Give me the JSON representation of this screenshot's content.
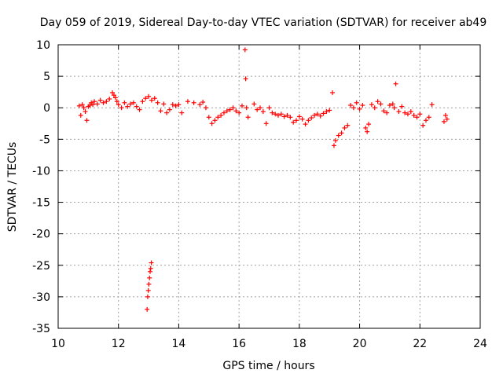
{
  "chart_data": {
    "type": "scatter",
    "title": "Day 059 of 2019, Sidereal Day-to-day VTEC variation (SDTVAR) for receiver ab49",
    "xlabel": "GPS time / hours",
    "ylabel": "SDTVAR / TECUs",
    "xlim": [
      10,
      24
    ],
    "ylim": [
      -35,
      10
    ],
    "xticks": [
      "10",
      "12",
      "14",
      "16",
      "18",
      "20",
      "22",
      "24"
    ],
    "yticks": [
      "10",
      "5",
      "0",
      "-5",
      "-10",
      "-15",
      "-20",
      "-25",
      "-30",
      "-35"
    ],
    "grid": true,
    "marker": "plus",
    "color": "#ff0000",
    "series": [
      {
        "name": "SDTVAR",
        "x": [
          10.7,
          10.75,
          10.8,
          10.85,
          10.9,
          10.95,
          11.0,
          11.05,
          11.1,
          11.15,
          11.2,
          11.3,
          11.4,
          11.5,
          11.6,
          11.7,
          11.8,
          11.85,
          11.9,
          11.95,
          12.0,
          12.1,
          12.2,
          12.3,
          12.4,
          12.5,
          12.6,
          12.7,
          12.8,
          12.9,
          13.0,
          13.1,
          13.2,
          13.3,
          13.4,
          13.5,
          13.6,
          13.7,
          13.8,
          13.9,
          14.0,
          14.1,
          14.3,
          14.5,
          14.7,
          14.8,
          14.9,
          15.0,
          15.1,
          15.2,
          15.3,
          15.4,
          15.5,
          15.6,
          15.7,
          15.8,
          15.9,
          16.0,
          16.1,
          16.2,
          16.22,
          16.25,
          16.3,
          16.5,
          16.6,
          16.7,
          16.8,
          16.9,
          17.0,
          17.1,
          17.2,
          17.3,
          17.4,
          17.5,
          17.6,
          17.7,
          17.8,
          17.9,
          18.0,
          18.1,
          18.2,
          18.3,
          18.4,
          18.5,
          18.6,
          18.7,
          18.8,
          18.9,
          19.0,
          19.1,
          19.15,
          19.2,
          19.3,
          19.4,
          19.5,
          19.6,
          19.7,
          19.8,
          19.9,
          20.0,
          20.1,
          20.2,
          20.25,
          20.3,
          20.4,
          20.5,
          20.6,
          20.7,
          20.8,
          20.9,
          21.0,
          21.1,
          21.15,
          21.2,
          21.3,
          21.4,
          21.5,
          21.6,
          21.7,
          21.8,
          21.9,
          22.0,
          22.1,
          22.2,
          22.3,
          22.4,
          22.8,
          22.85,
          22.9,
          12.95,
          12.97,
          12.99,
          13.01,
          13.03,
          13.05,
          13.07,
          13.09
        ],
        "y": [
          0.3,
          -1.2,
          0.5,
          0.0,
          -0.6,
          -2.0,
          0.2,
          0.4,
          0.8,
          0.5,
          1.0,
          0.6,
          1.2,
          0.8,
          1.0,
          1.4,
          2.4,
          2.0,
          1.6,
          1.0,
          0.5,
          0.0,
          0.8,
          0.2,
          0.6,
          0.8,
          0.2,
          -0.3,
          1.0,
          1.5,
          1.8,
          1.2,
          1.5,
          0.8,
          -0.5,
          0.6,
          -0.8,
          -0.3,
          0.5,
          0.3,
          0.5,
          -0.8,
          1.0,
          0.8,
          0.5,
          0.9,
          0.0,
          -1.5,
          -2.5,
          -2.0,
          -1.5,
          -1.2,
          -0.8,
          -0.5,
          -0.3,
          0.0,
          -0.5,
          -0.8,
          0.3,
          9.2,
          4.6,
          0.0,
          -1.5,
          0.6,
          -0.3,
          0.0,
          -0.6,
          -2.5,
          0.0,
          -0.8,
          -1.0,
          -1.2,
          -1.0,
          -1.4,
          -1.2,
          -1.5,
          -2.3,
          -2.0,
          -1.4,
          -1.8,
          -2.6,
          -2.0,
          -1.6,
          -1.2,
          -1.0,
          -1.3,
          -0.9,
          -0.6,
          -0.4,
          2.4,
          -6.0,
          -5.2,
          -4.4,
          -4.0,
          -3.2,
          -2.8,
          0.4,
          0.0,
          0.8,
          -0.2,
          0.4,
          -3.2,
          -3.8,
          -2.6,
          0.5,
          0.0,
          1.0,
          0.6,
          -0.5,
          -0.8,
          0.4,
          0.6,
          0.0,
          3.8,
          -0.6,
          0.2,
          -0.8,
          -1.0,
          -0.6,
          -1.2,
          -1.5,
          -1.0,
          -2.8,
          -2.0,
          -1.5,
          0.5,
          -2.2,
          -1.2,
          -1.8,
          -32.0,
          -30.0,
          -29.0,
          -28.0,
          -27.0,
          -26.0,
          -25.5,
          -24.6
        ]
      }
    ]
  }
}
